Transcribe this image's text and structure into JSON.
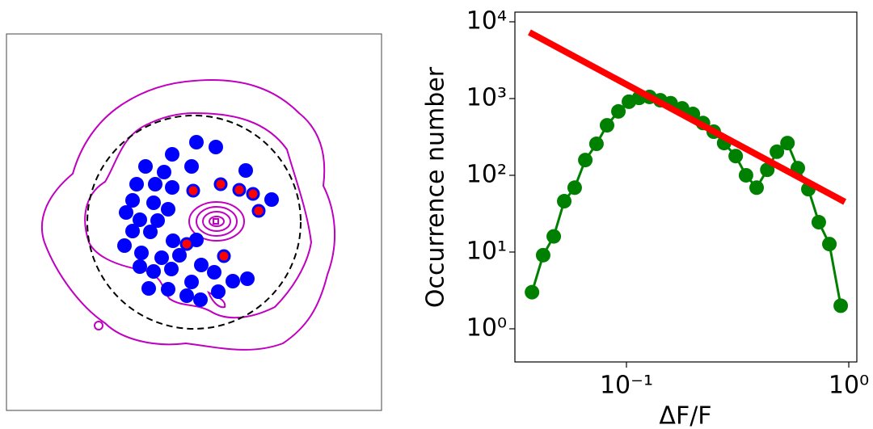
{
  "chart_data": {
    "type": "line",
    "xlabel": "ΔF/F",
    "ylabel": "Occurrence number",
    "xscale": "log",
    "yscale": "log",
    "xlim": [
      0.0315,
      1.087
    ],
    "ylim": [
      0.37,
      13370
    ],
    "xticks": [
      {
        "value": 0.1,
        "label": "10⁻¹"
      },
      {
        "value": 1,
        "label": "10⁰"
      }
    ],
    "yticks": [
      {
        "value": 1,
        "label": "10⁰"
      },
      {
        "value": 10,
        "label": "10¹"
      },
      {
        "value": 100,
        "label": "10²"
      },
      {
        "value": 1000,
        "label": "10³"
      },
      {
        "value": 10000,
        "label": "10⁴"
      }
    ],
    "series": [
      {
        "color": "#008000",
        "markers": true,
        "x": [
          0.0376,
          0.0422,
          0.0471,
          0.0525,
          0.0585,
          0.0653,
          0.0733,
          0.0818,
          0.092,
          0.1026,
          0.114,
          0.127,
          0.142,
          0.158,
          0.178,
          0.199,
          0.221,
          0.247,
          0.275,
          0.31,
          0.345,
          0.385,
          0.43,
          0.475,
          0.53,
          0.59,
          0.658,
          0.733,
          0.818,
          0.92
        ],
        "values": [
          3,
          9.1,
          16,
          46,
          69,
          158,
          257,
          448,
          680,
          910,
          1020,
          1050,
          950,
          870,
          745,
          630,
          480,
          370,
          263,
          178,
          100,
          69,
          118,
          203,
          263,
          124,
          66,
          24.5,
          12.7,
          2.0
        ]
      },
      {
        "color": "#ff0000",
        "markers": false,
        "x": [
          0.0366,
          0.96
        ],
        "values": [
          7300,
          45
        ]
      }
    ]
  }
}
